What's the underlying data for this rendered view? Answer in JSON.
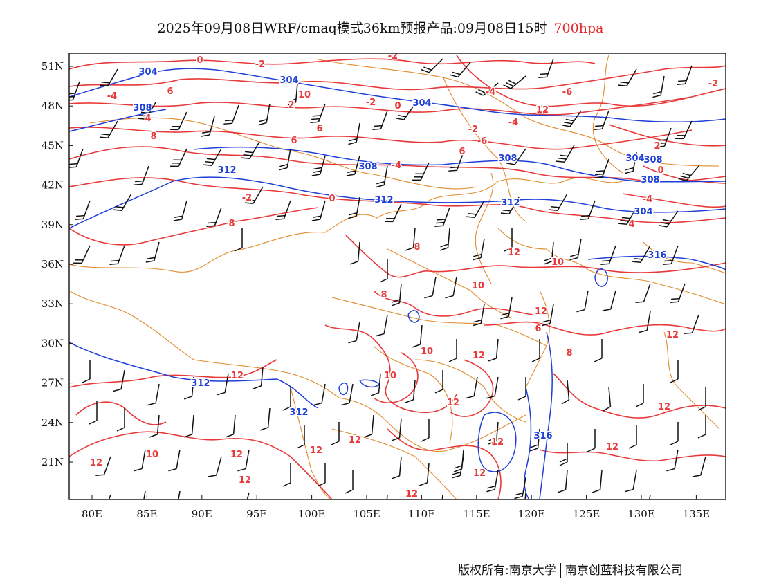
{
  "title": {
    "main": "2025年09月08日WRF/cmaq模式36km预报产品:09月08日15时",
    "level": "700hpa",
    "level_color": "#e8282a"
  },
  "axes": {
    "lat_labels": [
      "51N",
      "48N",
      "45N",
      "42N",
      "39N",
      "36N",
      "33N",
      "30N",
      "27N",
      "24N",
      "21N"
    ],
    "lon_labels": [
      "80E",
      "85E",
      "90E",
      "95E",
      "100E",
      "105E",
      "110E",
      "115E",
      "120E",
      "125E",
      "130E",
      "135E"
    ]
  },
  "colors": {
    "temperature_contour": "#e8393a",
    "height_contour": "#1e3fd8",
    "boundary": "#e08a2c",
    "wind_barb": "#111111"
  },
  "contour_labels": {
    "temperature": [
      "0",
      "-2",
      "-2",
      "-4",
      "-6",
      "6",
      "-4",
      "2",
      "4",
      "6",
      "8",
      "-2",
      "0",
      "-2",
      "-4",
      "-6",
      "6",
      "-4",
      "0",
      "-2",
      "8",
      "12",
      "10",
      "10",
      "8",
      "6",
      "10",
      "8",
      "10",
      "12",
      "12",
      "12",
      "12",
      "12",
      "12",
      "12",
      "12",
      "12",
      "12",
      "10",
      "12",
      "12",
      "12",
      "12",
      "0",
      "10",
      "2",
      "-2",
      "-4",
      "4",
      "6",
      "8",
      "12",
      "12"
    ],
    "height": [
      "304",
      "304",
      "308",
      "304",
      "312",
      "308",
      "308",
      "312",
      "312",
      "308",
      "304",
      "308",
      "304",
      "316",
      "312",
      "312",
      "316"
    ]
  },
  "copyright": {
    "left": "版权所有:南京大学",
    "right": "南京创蓝科技有限公司"
  }
}
